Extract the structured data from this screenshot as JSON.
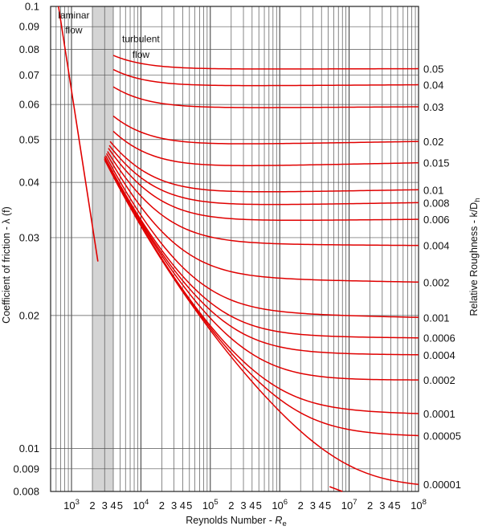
{
  "chart_data": {
    "type": "line",
    "title": "",
    "xlabel": "Reynolds Number - ",
    "xlabel_symbol": "R",
    "xlabel_sub": "e",
    "ylabel": "Coefficient of friction - λ (f)",
    "y2label": "Relative Roughness - k/D",
    "y2label_sub": "h",
    "x_scale": "log",
    "y_scale": "log",
    "xlim": [
      500,
      100000000
    ],
    "ylim": [
      0.008,
      0.1
    ],
    "grid": true,
    "x_tick_labels": [
      {
        "v": 1000,
        "base": "10",
        "exp": "3"
      },
      {
        "v": 2000,
        "t": "2"
      },
      {
        "v": 3000,
        "t": "3"
      },
      {
        "v": 4000,
        "t": "4"
      },
      {
        "v": 5000,
        "t": "5"
      },
      {
        "v": 10000,
        "base": "10",
        "exp": "4"
      },
      {
        "v": 20000,
        "t": "2"
      },
      {
        "v": 30000,
        "t": "3"
      },
      {
        "v": 40000,
        "t": "4"
      },
      {
        "v": 50000,
        "t": "5"
      },
      {
        "v": 100000,
        "base": "10",
        "exp": "5"
      },
      {
        "v": 200000,
        "t": "2"
      },
      {
        "v": 300000,
        "t": "3"
      },
      {
        "v": 400000,
        "t": "4"
      },
      {
        "v": 500000,
        "t": "5"
      },
      {
        "v": 1000000,
        "base": "10",
        "exp": "6"
      },
      {
        "v": 2000000,
        "t": "2"
      },
      {
        "v": 3000000,
        "t": "3"
      },
      {
        "v": 4000000,
        "t": "4"
      },
      {
        "v": 5000000,
        "t": "5"
      },
      {
        "v": 10000000,
        "base": "10",
        "exp": "7"
      },
      {
        "v": 20000000,
        "t": "2"
      },
      {
        "v": 30000000,
        "t": "3"
      },
      {
        "v": 40000000,
        "t": "4"
      },
      {
        "v": 50000000,
        "t": "5"
      },
      {
        "v": 100000000,
        "base": "10",
        "exp": "8"
      }
    ],
    "y_tick_labels": [
      {
        "v": 0.1,
        "t": "0.1"
      },
      {
        "v": 0.09,
        "t": "0.09"
      },
      {
        "v": 0.08,
        "t": "0.08"
      },
      {
        "v": 0.07,
        "t": "0.07"
      },
      {
        "v": 0.06,
        "t": "0.06"
      },
      {
        "v": 0.05,
        "t": "0.05"
      },
      {
        "v": 0.04,
        "t": "0.04"
      },
      {
        "v": 0.03,
        "t": "0.03"
      },
      {
        "v": 0.02,
        "t": "0.02"
      },
      {
        "v": 0.01,
        "t": "0.01"
      },
      {
        "v": 0.009,
        "t": "0.009"
      },
      {
        "v": 0.008,
        "t": "0.008"
      }
    ],
    "annotations": [
      {
        "text": "laminar",
        "x": 1080,
        "y": 0.094
      },
      {
        "text": "flow",
        "x": 1080,
        "y": 0.087
      },
      {
        "text": "turbulent",
        "x": 10000,
        "y": 0.083
      },
      {
        "text": "flow",
        "x": 10000,
        "y": 0.0765
      }
    ],
    "critical_zone": {
      "x": [
        2000,
        4000
      ],
      "color": "#d4d4d4"
    },
    "curve_color": "#e00000",
    "laminar": {
      "points": [
        {
          "x": 650,
          "y": 0.1
        },
        {
          "x": 2400,
          "y": 0.0265
        }
      ]
    },
    "series": [
      {
        "name": "0.05",
        "y_end": 0.0723,
        "start": [
          4000,
          0.0775
        ]
      },
      {
        "name": "0.04",
        "y_end": 0.0665,
        "start": [
          4000,
          0.072
        ]
      },
      {
        "name": "0.03",
        "y_end": 0.0593,
        "start": [
          4000,
          0.0658
        ]
      },
      {
        "name": "0.02",
        "y_end": 0.0495,
        "start": [
          4000,
          0.0565
        ]
      },
      {
        "name": "0.015",
        "y_end": 0.0443,
        "start": [
          4000,
          0.0522
        ]
      },
      {
        "name": "0.01",
        "y_end": 0.0385,
        "start": [
          3600,
          0.0495
        ]
      },
      {
        "name": "0.008",
        "y_end": 0.036,
        "start": [
          3500,
          0.0485
        ]
      },
      {
        "name": "0.006",
        "y_end": 0.033,
        "start": [
          3400,
          0.0478
        ]
      },
      {
        "name": "0.004",
        "y_end": 0.0288,
        "start": [
          3300,
          0.047
        ]
      },
      {
        "name": "0.002",
        "y_end": 0.0238,
        "start": [
          3200,
          0.0465
        ]
      },
      {
        "name": "0.001",
        "y_end": 0.0198,
        "start": [
          3100,
          0.046
        ]
      },
      {
        "name": "0.0006",
        "y_end": 0.0178,
        "start": [
          3000,
          0.0457
        ]
      },
      {
        "name": "0.0004",
        "y_end": 0.0163,
        "start": [
          3000,
          0.0455
        ]
      },
      {
        "name": "0.0002",
        "y_end": 0.0143,
        "start": [
          3000,
          0.0453
        ]
      },
      {
        "name": "0.0001",
        "y_end": 0.012,
        "start": [
          3000,
          0.0452
        ]
      },
      {
        "name": "0.00005",
        "y_end": 0.0107,
        "start": [
          3000,
          0.0451
        ]
      },
      {
        "name": "0.00001",
        "y_end": 0.0083,
        "start": [
          3000,
          0.045
        ]
      }
    ],
    "smooth_pipe_visible_end": {
      "x": 8000000,
      "y": 0.008
    }
  }
}
